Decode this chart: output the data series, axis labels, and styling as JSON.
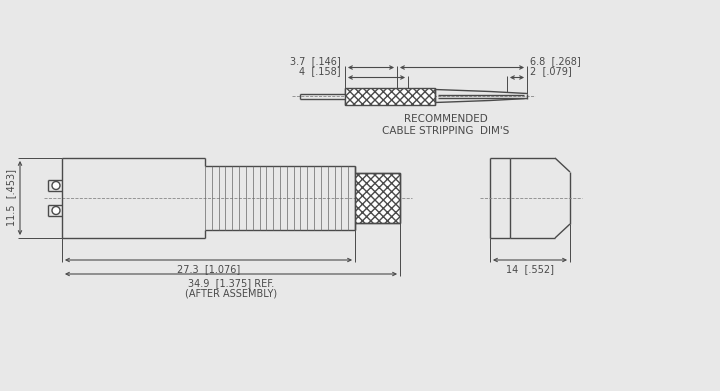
{
  "bg_color": "#e8e8e8",
  "line_color": "#4a4a4a",
  "dim_color": "#4a4a4a",
  "cable_strip": {
    "label_top1": "3.7  [.146]",
    "label_top2": "4  [.158]",
    "label_right1": "6.8  [.268]",
    "label_right2": "2  [.079]",
    "caption1": "RECOMMENDED",
    "caption2": "CABLE STRIPPING  DIM'S"
  },
  "main_dims": {
    "height_label": "11.5  [.453]",
    "width1_label": "27.3  [1.076]",
    "width2_label": "34.9  [1.375] REF.",
    "width2_sub": "(AFTER ASSEMBLY)",
    "side_label": "14  [.552]"
  }
}
